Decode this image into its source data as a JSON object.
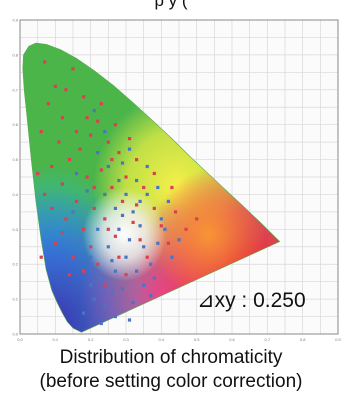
{
  "header_text": "p                                           y (",
  "annotation": {
    "symbol": "⊿xy",
    "separator": ":",
    "value": "0.250"
  },
  "caption": {
    "line1": "Distribution of chromaticity",
    "line2": "(before setting color correction)"
  },
  "colors": {
    "red_points": "#d9414f",
    "blue_points": "#4a74c4",
    "grid": "#d8d8d8",
    "axis": "#8a8a8a"
  },
  "chart_data": {
    "type": "scatter",
    "title": "",
    "xlabel": "",
    "ylabel": "",
    "xlim": [
      0,
      0.9
    ],
    "ylim": [
      0,
      0.9
    ],
    "grid": true,
    "x_ticks": [
      "0.0",
      "0.1",
      "0.2",
      "0.3",
      "0.4",
      "0.5",
      "0.6",
      "0.7",
      "0.8",
      "0.9"
    ],
    "y_ticks": [
      "0.0",
      "0.1",
      "0.2",
      "0.3",
      "0.4",
      "0.5",
      "0.6",
      "0.7",
      "0.8",
      "0.9"
    ],
    "series": [
      {
        "color": "#d9414f",
        "points": [
          [
            0.07,
            0.78
          ],
          [
            0.08,
            0.66
          ],
          [
            0.1,
            0.71
          ],
          [
            0.12,
            0.62
          ],
          [
            0.15,
            0.76
          ],
          [
            0.18,
            0.68
          ],
          [
            0.2,
            0.57
          ],
          [
            0.11,
            0.55
          ],
          [
            0.14,
            0.5
          ],
          [
            0.09,
            0.48
          ],
          [
            0.17,
            0.53
          ],
          [
            0.22,
            0.61
          ],
          [
            0.25,
            0.55
          ],
          [
            0.19,
            0.45
          ],
          [
            0.12,
            0.43
          ],
          [
            0.07,
            0.4
          ],
          [
            0.16,
            0.38
          ],
          [
            0.23,
            0.47
          ],
          [
            0.28,
            0.52
          ],
          [
            0.3,
            0.45
          ],
          [
            0.33,
            0.5
          ],
          [
            0.26,
            0.42
          ],
          [
            0.21,
            0.36
          ],
          [
            0.13,
            0.33
          ],
          [
            0.18,
            0.3
          ],
          [
            0.24,
            0.33
          ],
          [
            0.29,
            0.38
          ],
          [
            0.35,
            0.42
          ],
          [
            0.38,
            0.36
          ],
          [
            0.32,
            0.32
          ],
          [
            0.27,
            0.28
          ],
          [
            0.2,
            0.25
          ],
          [
            0.15,
            0.22
          ],
          [
            0.22,
            0.2
          ],
          [
            0.28,
            0.22
          ],
          [
            0.34,
            0.27
          ],
          [
            0.4,
            0.31
          ],
          [
            0.44,
            0.35
          ],
          [
            0.47,
            0.3
          ],
          [
            0.42,
            0.26
          ],
          [
            0.36,
            0.22
          ],
          [
            0.3,
            0.17
          ],
          [
            0.24,
            0.14
          ],
          [
            0.06,
            0.22
          ],
          [
            0.1,
            0.26
          ],
          [
            0.14,
            0.17
          ],
          [
            0.19,
            0.62
          ],
          [
            0.13,
            0.7
          ],
          [
            0.23,
            0.66
          ],
          [
            0.27,
            0.6
          ],
          [
            0.31,
            0.56
          ],
          [
            0.06,
            0.58
          ],
          [
            0.05,
            0.46
          ],
          [
            0.16,
            0.58
          ],
          [
            0.09,
            0.36
          ],
          [
            0.21,
            0.42
          ],
          [
            0.26,
            0.5
          ],
          [
            0.38,
            0.46
          ],
          [
            0.43,
            0.42
          ],
          [
            0.5,
            0.33
          ],
          [
            0.18,
            0.18
          ],
          [
            0.25,
            0.3
          ],
          [
            0.33,
            0.37
          ],
          [
            0.12,
            0.29
          ]
        ]
      },
      {
        "color": "#4a74c4",
        "points": [
          [
            0.25,
            0.48
          ],
          [
            0.28,
            0.44
          ],
          [
            0.3,
            0.4
          ],
          [
            0.32,
            0.35
          ],
          [
            0.27,
            0.36
          ],
          [
            0.24,
            0.4
          ],
          [
            0.22,
            0.3
          ],
          [
            0.25,
            0.25
          ],
          [
            0.28,
            0.3
          ],
          [
            0.31,
            0.27
          ],
          [
            0.34,
            0.31
          ],
          [
            0.35,
            0.25
          ],
          [
            0.3,
            0.22
          ],
          [
            0.27,
            0.18
          ],
          [
            0.23,
            0.16
          ],
          [
            0.26,
            0.12
          ],
          [
            0.21,
            0.1
          ],
          [
            0.18,
            0.06
          ],
          [
            0.24,
            0.08
          ],
          [
            0.29,
            0.13
          ],
          [
            0.33,
            0.18
          ],
          [
            0.37,
            0.2
          ],
          [
            0.39,
            0.26
          ],
          [
            0.4,
            0.33
          ],
          [
            0.42,
            0.38
          ],
          [
            0.36,
            0.4
          ],
          [
            0.33,
            0.44
          ],
          [
            0.29,
            0.49
          ],
          [
            0.22,
            0.52
          ],
          [
            0.19,
            0.41
          ],
          [
            0.15,
            0.35
          ],
          [
            0.17,
            0.27
          ],
          [
            0.2,
            0.22
          ],
          [
            0.14,
            0.27
          ],
          [
            0.31,
            0.53
          ],
          [
            0.36,
            0.48
          ],
          [
            0.32,
            0.09
          ],
          [
            0.35,
            0.14
          ],
          [
            0.38,
            0.16
          ],
          [
            0.43,
            0.22
          ],
          [
            0.27,
            0.05
          ],
          [
            0.23,
            0.03
          ],
          [
            0.45,
            0.27
          ],
          [
            0.2,
            0.14
          ],
          [
            0.26,
            0.21
          ],
          [
            0.29,
            0.34
          ],
          [
            0.34,
            0.38
          ],
          [
            0.39,
            0.42
          ],
          [
            0.24,
            0.58
          ],
          [
            0.21,
            0.64
          ],
          [
            0.41,
            0.3
          ],
          [
            0.37,
            0.11
          ],
          [
            0.16,
            0.46
          ],
          [
            0.31,
            0.04
          ]
        ]
      }
    ]
  }
}
